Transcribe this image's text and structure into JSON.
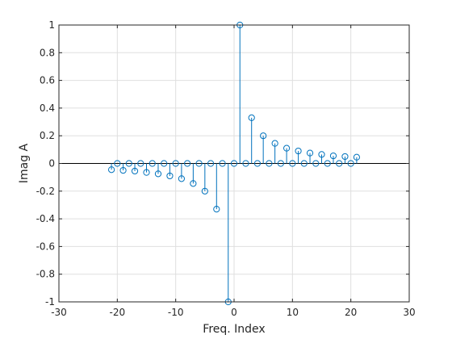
{
  "chart_data": {
    "type": "stem",
    "xlabel": "Freq. Index",
    "ylabel": "Imag A",
    "xlim": [
      -30,
      30
    ],
    "ylim": [
      -1,
      1
    ],
    "x_ticks": [
      -30,
      -20,
      -10,
      0,
      10,
      20,
      30
    ],
    "y_ticks": [
      -1,
      -0.8,
      -0.6,
      -0.4,
      -0.2,
      0,
      0.2,
      0.4,
      0.6,
      0.8,
      1
    ],
    "x_tick_labels": [
      "-30",
      "-20",
      "-10",
      "0",
      "10",
      "20",
      "30"
    ],
    "y_tick_labels": [
      "-1",
      "-0.8",
      "-0.6",
      "-0.4",
      "-0.2",
      "0",
      "0.2",
      "0.4",
      "0.6",
      "0.8",
      "1"
    ],
    "grid": true,
    "baseline": 0,
    "series": [
      {
        "x": [
          -21,
          -20,
          -19,
          -18,
          -17,
          -16,
          -15,
          -14,
          -13,
          -12,
          -11,
          -10,
          -9,
          -8,
          -7,
          -6,
          -5,
          -4,
          -3,
          -2,
          -1,
          0,
          1,
          2,
          3,
          4,
          5,
          6,
          7,
          8,
          9,
          10,
          11,
          12,
          13,
          14,
          15,
          16,
          17,
          18,
          19,
          20,
          21
        ],
        "values": [
          -0.045,
          0,
          -0.05,
          0,
          -0.055,
          0,
          -0.065,
          0,
          -0.075,
          0,
          -0.09,
          0,
          -0.11,
          0,
          -0.145,
          0,
          -0.2,
          0,
          -0.33,
          0,
          -1,
          0,
          1,
          0,
          0.33,
          0,
          0.2,
          0,
          0.145,
          0,
          0.11,
          0,
          0.09,
          0,
          0.075,
          0,
          0.065,
          0,
          0.055,
          0,
          0.05,
          0,
          0.045
        ]
      }
    ],
    "colors": {
      "stem": "#0072BD",
      "axis": "#262626",
      "grid": "#DFDFDF",
      "baseline": "#000000"
    }
  }
}
